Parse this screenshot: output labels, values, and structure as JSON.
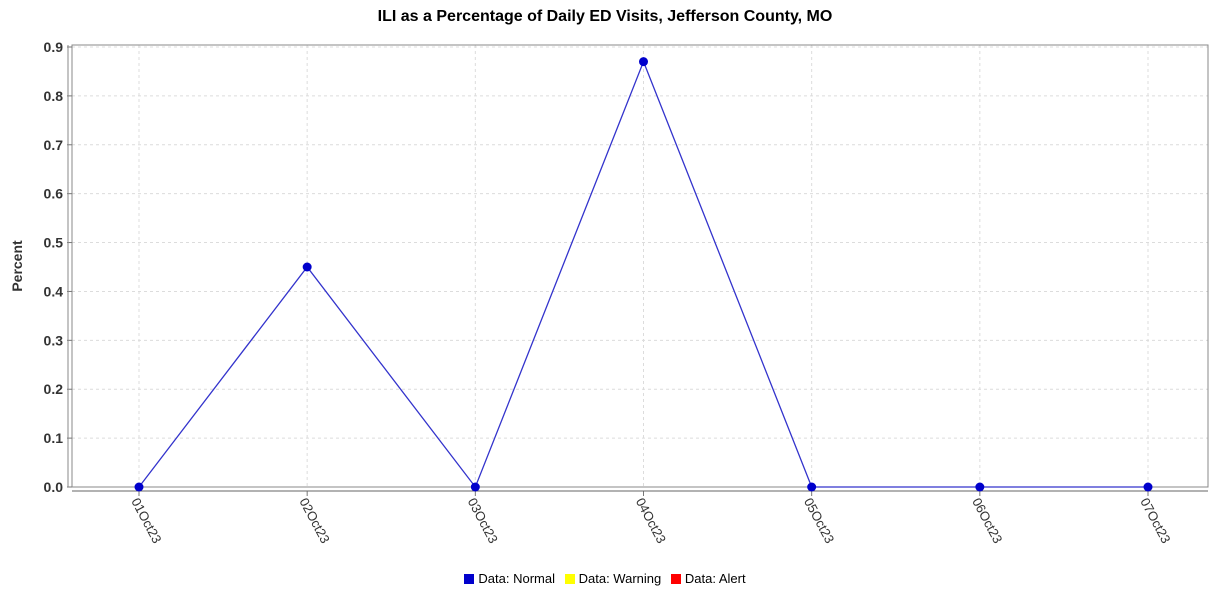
{
  "chart_data": {
    "type": "line",
    "title": "ILI as a Percentage of Daily ED Visits, Jefferson County, MO",
    "xlabel": "",
    "ylabel": "Percent",
    "categories": [
      "01Oct23",
      "02Oct23",
      "03Oct23",
      "04Oct23",
      "05Oct23",
      "06Oct23",
      "07Oct23"
    ],
    "values": [
      0.0,
      0.45,
      0.0,
      0.87,
      0.0,
      0.0,
      0.0
    ],
    "ylim": [
      0,
      0.9
    ],
    "yticks": [
      "0.0",
      "0.1",
      "0.2",
      "0.3",
      "0.4",
      "0.5",
      "0.6",
      "0.7",
      "0.8",
      "0.9"
    ],
    "grid": true,
    "line_color": "#3333cc",
    "point_color": "#0000cc",
    "legend": {
      "placement": "bottom",
      "items": [
        {
          "label": "Data: Normal",
          "color": "#0000cc"
        },
        {
          "label": "Data: Warning",
          "color": "#ffff00"
        },
        {
          "label": "Data: Alert",
          "color": "#ff0000"
        }
      ]
    }
  }
}
